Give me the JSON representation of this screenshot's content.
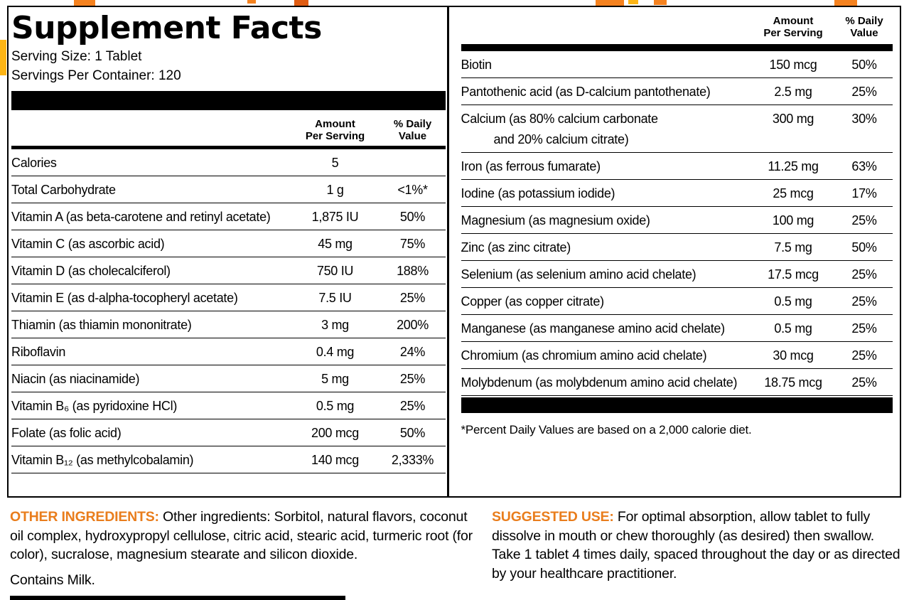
{
  "colors": {
    "accent": "#E97D1C",
    "fragment_orange": "#F5821F",
    "fragment_yellow": "#FDB515",
    "rule_color": "#000000"
  },
  "title": "Supplement Facts",
  "serving": {
    "size": "Serving Size: 1 Tablet",
    "per_container": "Servings Per Container: 120"
  },
  "col_headers": {
    "amount_l1": "Amount",
    "amount_l2": "Per Serving",
    "dv_l1": "% Daily",
    "dv_l2": "Value"
  },
  "left_table": {
    "rows": [
      {
        "name": "Calories",
        "amount": "5",
        "dv": ""
      },
      {
        "name": "Total Carbohydrate",
        "amount": "1 g",
        "dv": "<1%*"
      },
      {
        "name": "Vitamin A (as beta-carotene and retinyl acetate)",
        "amount": "1,875 IU",
        "dv": "50%"
      },
      {
        "name": "Vitamin C (as ascorbic acid)",
        "amount": "45 mg",
        "dv": "75%"
      },
      {
        "name": "Vitamin D (as cholecalciferol)",
        "amount": "750 IU",
        "dv": "188%"
      },
      {
        "name": "Vitamin E (as d-alpha-tocopheryl acetate)",
        "amount": "7.5 IU",
        "dv": "25%"
      },
      {
        "name": "Thiamin (as thiamin mononitrate)",
        "amount": "3 mg",
        "dv": "200%"
      },
      {
        "name": "Riboflavin",
        "amount": "0.4 mg",
        "dv": "24%"
      },
      {
        "name": "Niacin (as niacinamide)",
        "amount": "5 mg",
        "dv": "25%"
      },
      {
        "name": "Vitamin B₆ (as pyridoxine HCl)",
        "amount": "0.5 mg",
        "dv": "25%"
      },
      {
        "name": "Folate (as folic acid)",
        "amount": "200 mcg",
        "dv": "50%"
      },
      {
        "name": "Vitamin B₁₂ (as methylcobalamin)",
        "amount": "140 mcg",
        "dv": "2,333%"
      }
    ]
  },
  "right_table": {
    "rows": [
      {
        "name": "Biotin",
        "amount": "150 mcg",
        "dv": "50%"
      },
      {
        "name": "Pantothenic acid (as D-calcium pantothenate)",
        "amount": "2.5 mg",
        "dv": "25%"
      },
      {
        "name": "Calcium (as 80% calcium carbonate",
        "name2": "and 20% calcium citrate)",
        "amount": "300 mg",
        "dv": "30%"
      },
      {
        "name": "Iron (as ferrous fumarate)",
        "amount": "11.25 mg",
        "dv": "63%"
      },
      {
        "name": "Iodine (as potassium iodide)",
        "amount": "25 mcg",
        "dv": "17%"
      },
      {
        "name": "Magnesium (as magnesium oxide)",
        "amount": "100 mg",
        "dv": "25%"
      },
      {
        "name": "Zinc (as zinc citrate)",
        "amount": "7.5 mg",
        "dv": "50%"
      },
      {
        "name": "Selenium (as selenium amino acid chelate)",
        "amount": "17.5 mcg",
        "dv": "25%"
      },
      {
        "name": "Copper (as copper citrate)",
        "amount": "0.5 mg",
        "dv": "25%"
      },
      {
        "name": "Manganese (as manganese amino acid chelate)",
        "amount": "0.5 mg",
        "dv": "25%"
      },
      {
        "name": "Chromium (as chromium amino acid chelate)",
        "amount": "30 mcg",
        "dv": "25%"
      },
      {
        "name": "Molybdenum (as molybdenum amino acid chelate)",
        "amount": "18.75 mcg",
        "dv": "25%"
      }
    ]
  },
  "footnote": "*Percent Daily Values are based on a 2,000 calorie diet.",
  "other_ingredients": {
    "label": "OTHER INGREDIENTS:",
    "text": " Other ingredients: Sorbitol, natural flavors, coconut oil complex, hydroxypropyl cellulose, citric acid, stearic acid, turmeric root (for color), sucralose, magnesium stearate and silicon dioxide.",
    "contains": "Contains Milk."
  },
  "suggested_use": {
    "label": "SUGGESTED USE:",
    "text": " For optimal absorption, allow tablet to fully dissolve in mouth or chew thoroughly (as desired) then swallow. Take 1 tablet 4 times daily, spaced throughout the day or as directed by your healthcare practitioner."
  }
}
